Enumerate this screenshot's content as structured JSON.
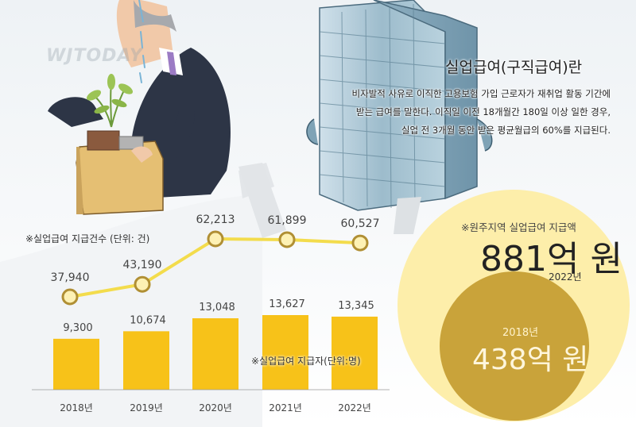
{
  "watermark": "WJTODAY",
  "info": {
    "title": "실업급여(구직급여)란",
    "line1": "비자발적 사유로 이직한 고용보험 가입 근로자가 재취업 활동 기간에",
    "line2": "받는 급여를 말한다. 이직일 이전 18개월간 180일 이상 일한 경우,",
    "line3": "실업 전 3개월 동안 받은 평균월급의 60%를 지급된다."
  },
  "circles": {
    "caption": "※원주지역 실업급여 지급액",
    "big": {
      "amount": "881억 원",
      "year": "2022년",
      "value": 881
    },
    "small": {
      "amount": "438억 원",
      "year": "2018년",
      "value": 438
    },
    "colors": {
      "big": "#fdeeaa",
      "small": "#c9a33a"
    }
  },
  "chart_data": [
    {
      "type": "line",
      "title": "※실업급여 지급건수 (단위: 건)",
      "categories": [
        "2018년",
        "2019년",
        "2020년",
        "2021년",
        "2022년"
      ],
      "values": [
        37940,
        43190,
        62213,
        61899,
        60527
      ],
      "value_labels": [
        "37,940",
        "43,190",
        "62,213",
        "61,899",
        "60,527"
      ],
      "color": "#f3dc4c",
      "marker_fill": "#fdf1b4",
      "marker_stroke": "#b08f34",
      "grid": false
    },
    {
      "type": "bar",
      "title": "※실업급여 지급자(단위:명)",
      "categories": [
        "2018년",
        "2019년",
        "2020년",
        "2021년",
        "2022년"
      ],
      "values": [
        9300,
        10674,
        13048,
        13627,
        13345
      ],
      "value_labels": [
        "9,300",
        "10,674",
        "13,048",
        "13,627",
        "13,345"
      ],
      "color": "#f7c219",
      "ylim": [
        0,
        13627
      ],
      "grid": false
    }
  ]
}
